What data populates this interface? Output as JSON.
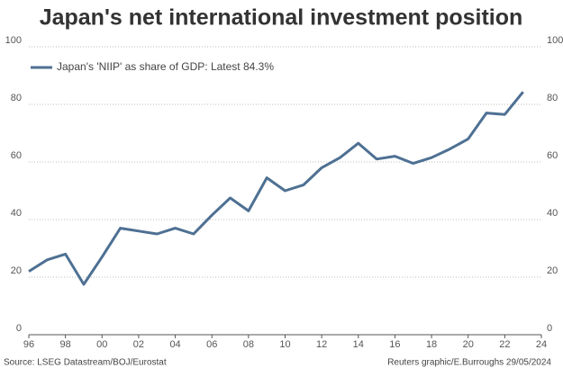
{
  "chart_data": {
    "type": "line",
    "title": "Japan's net international investment position",
    "x": [
      1996,
      1997,
      1998,
      1999,
      2000,
      2001,
      2002,
      2003,
      2004,
      2005,
      2006,
      2007,
      2008,
      2009,
      2010,
      2011,
      2012,
      2013,
      2014,
      2015,
      2016,
      2017,
      2018,
      2019,
      2020,
      2021,
      2022,
      2023
    ],
    "series": [
      {
        "name": "Japan's 'NIIP' as share of GDP: Latest 84.3%",
        "color": "#4e7093",
        "values": [
          22,
          26,
          28,
          17.5,
          27,
          37,
          36,
          35,
          37,
          35,
          41.5,
          47.5,
          43,
          54.5,
          50,
          52,
          58,
          61.5,
          66.5,
          61,
          62,
          59.5,
          61.5,
          64.5,
          68,
          77,
          76.5,
          84.3
        ]
      }
    ],
    "xlim": [
      1996,
      2024
    ],
    "xticks": [
      {
        "value": 1996,
        "label": "96"
      },
      {
        "value": 1998,
        "label": "98"
      },
      {
        "value": 2000,
        "label": "00"
      },
      {
        "value": 2002,
        "label": "02"
      },
      {
        "value": 2004,
        "label": "04"
      },
      {
        "value": 2006,
        "label": "06"
      },
      {
        "value": 2008,
        "label": "08"
      },
      {
        "value": 2010,
        "label": "10"
      },
      {
        "value": 2012,
        "label": "12"
      },
      {
        "value": 2014,
        "label": "14"
      },
      {
        "value": 2016,
        "label": "16"
      },
      {
        "value": 2018,
        "label": "18"
      },
      {
        "value": 2020,
        "label": "20"
      },
      {
        "value": 2022,
        "label": "22"
      },
      {
        "value": 2024,
        "label": "24"
      }
    ],
    "ylim": [
      0,
      100
    ],
    "yticks": [
      0,
      20,
      40,
      60,
      80,
      100
    ],
    "y2lim": [
      0,
      100
    ],
    "y2ticks": [
      0,
      20,
      40,
      60,
      80,
      100
    ],
    "grid": true,
    "legend": "top-left",
    "source": "Source: LSEG Datastream/BOJ/Eurostat",
    "credit": "Reuters graphic/E.Burroughs 29/05/2024"
  }
}
